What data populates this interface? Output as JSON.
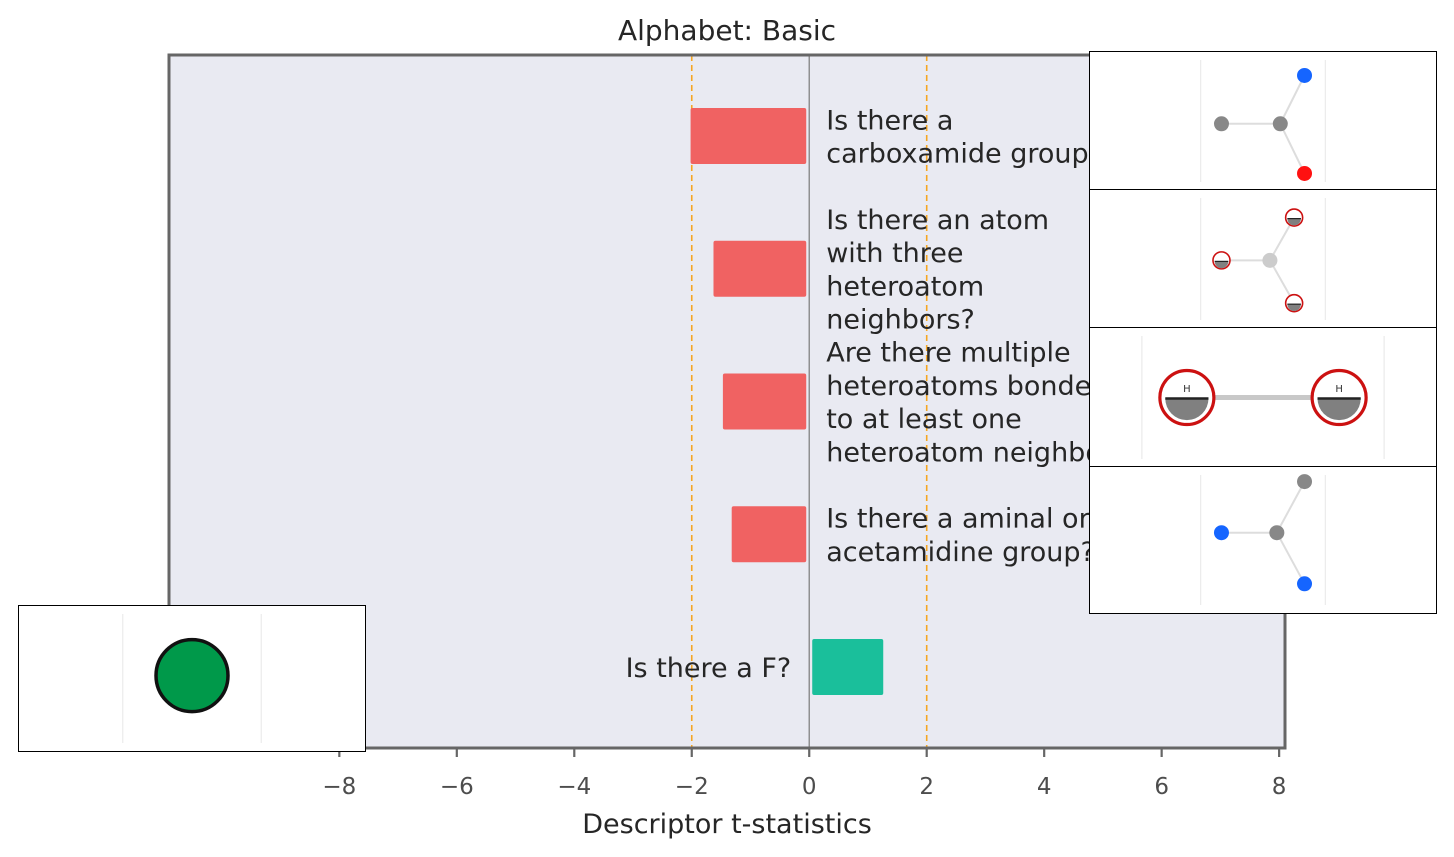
{
  "chart_data": {
    "type": "bar",
    "orientation": "horizontal",
    "title": "Alphabet: Basic",
    "xlabel": "Descriptor t-statistics",
    "xlim": [
      -10.9,
      8.1
    ],
    "xticks": [
      -8,
      -6,
      -4,
      -2,
      0,
      2,
      4,
      6,
      8
    ],
    "xtick_labels": [
      "−8",
      "−6",
      "−4",
      "−2",
      "0",
      "2",
      "4",
      "6",
      "8"
    ],
    "reference_lines": [
      -2,
      2
    ],
    "zero_line": 0,
    "background": "#e9eaf2",
    "bars": [
      {
        "label_lines": [
          "Is there a",
          "carboxamide group?"
        ],
        "value": -2.02,
        "color": "#f06262",
        "label_side": "right"
      },
      {
        "label_lines": [
          "Is there an atom",
          "with three",
          "heteroatom",
          "neighbors?"
        ],
        "value": -1.63,
        "color": "#f06262",
        "label_side": "right"
      },
      {
        "label_lines": [
          "Are there multiple",
          "heteroatoms bonded",
          "to at least one",
          "heteroatom neighbor?"
        ],
        "value": -1.47,
        "color": "#f06262",
        "label_side": "right"
      },
      {
        "label_lines": [
          "Is there a aminal or",
          "acetamidine group?"
        ],
        "value": -1.32,
        "color": "#f06262",
        "label_side": "right"
      },
      {
        "label_lines": [
          "Is there a F?"
        ],
        "value": 1.26,
        "color": "#1abf9b",
        "label_side": "left"
      }
    ],
    "molecule_insets": [
      {
        "atoms": [
          {
            "x": 0.38,
            "y": 0.52,
            "color": "#888888",
            "text": ""
          },
          {
            "x": 0.55,
            "y": 0.52,
            "color": "#888888",
            "text": ""
          },
          {
            "x": 0.62,
            "y": 0.17,
            "color": "#1565ff",
            "text": ""
          },
          {
            "x": 0.62,
            "y": 0.88,
            "color": "#ff1111",
            "text": ""
          }
        ],
        "bonds": [
          [
            0,
            1
          ],
          [
            1,
            2
          ],
          [
            1,
            3
          ]
        ],
        "style": "dots"
      },
      {
        "atoms": [
          {
            "x": 0.38,
            "y": 0.51,
            "color": "#ffffff",
            "text": ""
          },
          {
            "x": 0.52,
            "y": 0.51,
            "color": "#cccccc",
            "text": ""
          },
          {
            "x": 0.59,
            "y": 0.2,
            "color": "#ffffff",
            "text": ""
          },
          {
            "x": 0.59,
            "y": 0.82,
            "color": "#ffffff",
            "text": ""
          }
        ],
        "bonds": [
          [
            0,
            1
          ],
          [
            1,
            2
          ],
          [
            1,
            3
          ]
        ],
        "style": "query"
      },
      {
        "atoms": [
          {
            "x": 0.28,
            "y": 0.5,
            "color": "#ffffff",
            "text": "H"
          },
          {
            "x": 0.72,
            "y": 0.5,
            "color": "#ffffff",
            "text": "H"
          }
        ],
        "bonds": [
          [
            0,
            1
          ]
        ],
        "style": "query-large"
      },
      {
        "atoms": [
          {
            "x": 0.38,
            "y": 0.45,
            "color": "#1565ff",
            "text": ""
          },
          {
            "x": 0.54,
            "y": 0.45,
            "color": "#888888",
            "text": ""
          },
          {
            "x": 0.62,
            "y": 0.1,
            "color": "#888888",
            "text": ""
          },
          {
            "x": 0.62,
            "y": 0.8,
            "color": "#1565ff",
            "text": ""
          }
        ],
        "bonds": [
          [
            0,
            1
          ],
          [
            1,
            2
          ],
          [
            1,
            3
          ]
        ],
        "style": "dots"
      },
      {
        "atoms": [
          {
            "x": 0.5,
            "y": 0.48,
            "color": "#00994a",
            "text": ""
          }
        ],
        "bonds": [],
        "style": "single-large"
      }
    ]
  }
}
